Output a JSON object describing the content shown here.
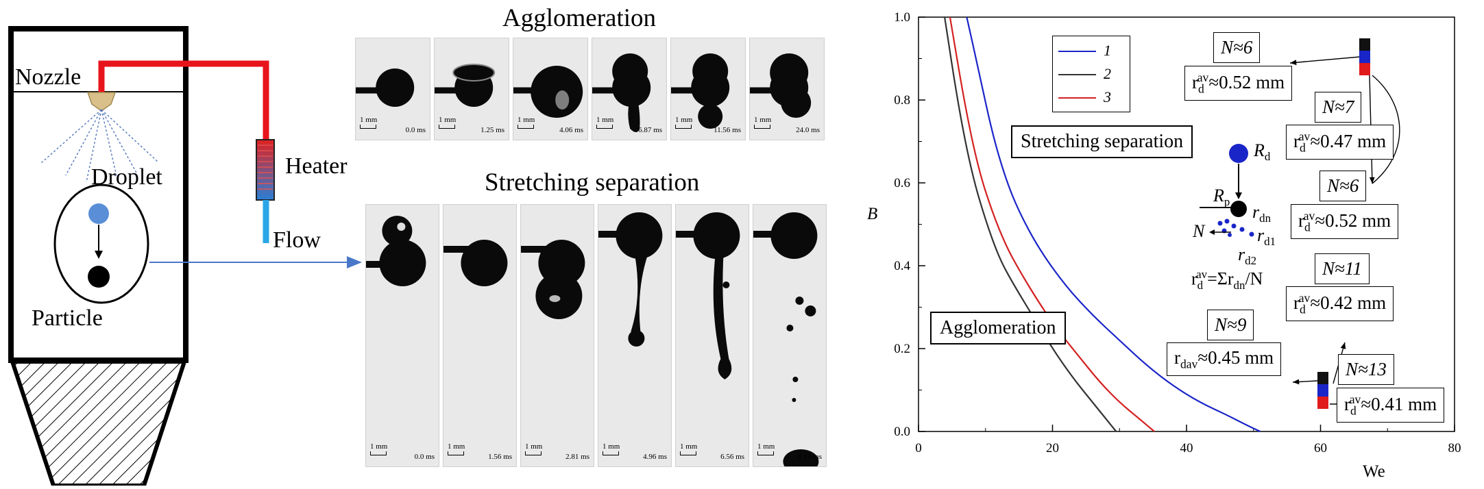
{
  "schematic": {
    "nozzle_label": "Nozzle",
    "droplet_label": "Droplet",
    "particle_label": "Particle",
    "heater_label": "Heater",
    "flow_label": "Flow"
  },
  "agglomeration_panel": {
    "title": "Agglomeration",
    "scale": "1 mm",
    "frames": [
      "0.0 ms",
      "1.25 ms",
      "4.06 ms",
      "6.87 ms",
      "11.56 ms",
      "24.0 ms"
    ]
  },
  "stretching_panel": {
    "title": "Stretching separation",
    "scale": "1 mm",
    "frames": [
      "0.0 ms",
      "1.56 ms",
      "2.81 ms",
      "4.96 ms",
      "6.56 ms",
      "8.13 ms"
    ]
  },
  "chart_data": {
    "type": "line",
    "xlabel": "We",
    "ylabel": "B",
    "xlim": [
      0,
      80
    ],
    "ylim": [
      0,
      1.0
    ],
    "xticks": [
      0,
      20,
      40,
      60,
      80
    ],
    "yticks": [
      0.0,
      0.2,
      0.4,
      0.6,
      0.8,
      1.0
    ],
    "series": [
      {
        "name": "1",
        "color": "#1a25c8",
        "x": [
          7.2,
          9,
          11,
          13,
          15,
          18,
          22,
          26,
          30,
          34,
          38,
          42,
          46,
          49,
          51
        ],
        "y": [
          1.0,
          0.87,
          0.72,
          0.61,
          0.53,
          0.44,
          0.35,
          0.28,
          0.22,
          0.16,
          0.11,
          0.07,
          0.04,
          0.015,
          0.0
        ]
      },
      {
        "name": "2",
        "color": "#333333",
        "x": [
          3.9,
          6,
          8,
          10,
          12,
          14,
          17,
          20,
          23,
          26,
          28,
          29.5
        ],
        "y": [
          1.0,
          0.78,
          0.62,
          0.51,
          0.42,
          0.36,
          0.28,
          0.2,
          0.13,
          0.07,
          0.03,
          0.0
        ]
      },
      {
        "name": "3",
        "color": "#d42020",
        "x": [
          4.7,
          7,
          9,
          11,
          13,
          15,
          18,
          21,
          24,
          27,
          30,
          33,
          35.2
        ],
        "y": [
          1.0,
          0.78,
          0.63,
          0.53,
          0.45,
          0.39,
          0.31,
          0.24,
          0.18,
          0.12,
          0.07,
          0.03,
          0.0
        ]
      }
    ],
    "legend_position": "top-left",
    "region_labels": [
      "Stretching separation",
      "Agglomeration"
    ],
    "inset": {
      "Rd": "R",
      "Rd_sub": "d",
      "Rp": "R",
      "Rp_sub": "p",
      "rdn": "r",
      "rdn_sub": "dn",
      "rd1": "r",
      "rd1_sub": "d1",
      "rd2": "r",
      "rd2_sub": "d2",
      "N": "N",
      "formula_a": "r",
      "formula_sub": "d",
      "formula_sup": "av",
      "formula_b": "=Σr",
      "formula_sub2": "dn",
      "formula_c": "/N"
    },
    "annotations": [
      {
        "N": "N≈6",
        "r_prefix": "r",
        "r_sub": "d",
        "r_sup": "av",
        "r_value": "≈0.52 mm"
      },
      {
        "N": "N≈7",
        "r_prefix": "r",
        "r_sub": "d",
        "r_sup": "av",
        "r_value": "≈0.47 mm"
      },
      {
        "N": "N≈6",
        "r_prefix": "r",
        "r_sub": "d",
        "r_sup": "av",
        "r_value": "≈0.52 mm"
      },
      {
        "N": "N≈11",
        "r_prefix": "r",
        "r_sub": "d",
        "r_sup": "av",
        "r_value": "≈0.42 mm"
      },
      {
        "N": "N≈9",
        "r_prefix": "r",
        "r_sub": "dav",
        "r_sup": "",
        "r_value": "≈0.45 mm"
      },
      {
        "N": "N≈13",
        "r_prefix": "r",
        "r_sub": "d",
        "r_sup": "av",
        "r_value": "≈0.41 mm"
      }
    ],
    "colors": {
      "blue": "#1a25c8",
      "black": "#111111",
      "red": "#e01b1b"
    }
  }
}
